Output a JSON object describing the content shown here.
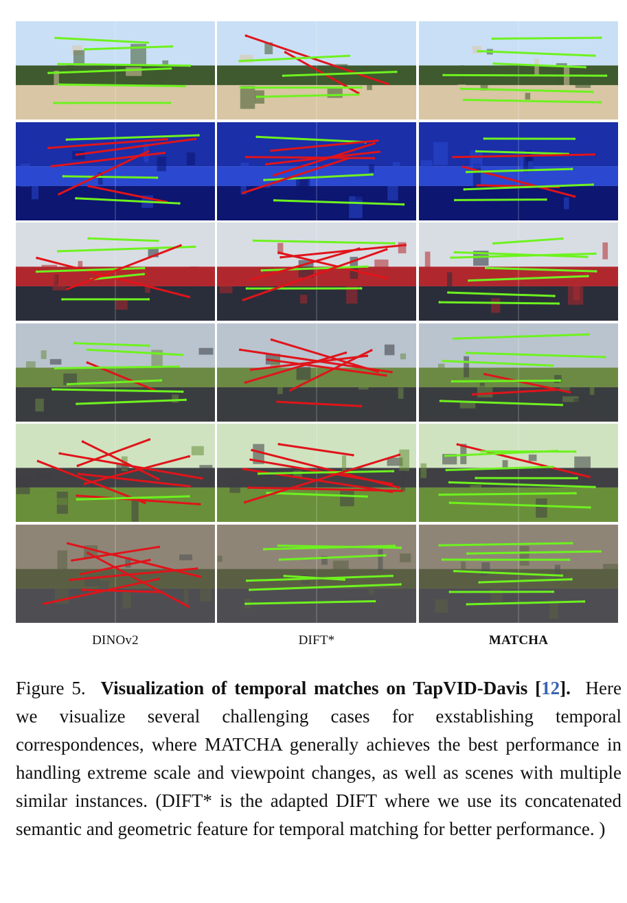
{
  "columns": [
    {
      "label": "DINOv2",
      "bold": false
    },
    {
      "label": "DIFT*",
      "bold": false
    },
    {
      "label": "MATCHA",
      "bold": true
    }
  ],
  "rows": [
    {
      "scene": "horse-show-jumping",
      "palette": [
        "#c9dff5",
        "#3e5a2e",
        "#d8c6a4"
      ],
      "matches": [
        [
          "green",
          "green",
          "green",
          "green",
          "green",
          "green"
        ],
        [
          "red",
          "red",
          "green",
          "green",
          "green",
          "green"
        ],
        [
          "green",
          "green",
          "green",
          "green",
          "green",
          "green"
        ]
      ]
    },
    {
      "scene": "goldfish-aquarium",
      "palette": [
        "#1a2fa8",
        "#2a48d0",
        "#0d1670"
      ],
      "matches": [
        [
          "green",
          "red",
          "red",
          "red",
          "green",
          "red",
          "red",
          "green"
        ],
        [
          "green",
          "red",
          "red",
          "red",
          "red",
          "green",
          "red",
          "green"
        ],
        [
          "green",
          "green",
          "red",
          "red",
          "green",
          "red",
          "green",
          "green"
        ]
      ]
    },
    {
      "scene": "electronics-store",
      "palette": [
        "#d8dde3",
        "#b0282e",
        "#2a2e3a"
      ],
      "matches": [
        [
          "green",
          "green",
          "red",
          "green",
          "green",
          "red",
          "green"
        ],
        [
          "green",
          "red",
          "red",
          "green",
          "red",
          "green",
          "red"
        ],
        [
          "green",
          "green",
          "green",
          "green",
          "green",
          "green",
          "green"
        ]
      ]
    },
    {
      "scene": "motorbike-burnout",
      "palette": [
        "#b9c4cf",
        "#6c8a44",
        "#3a3d40"
      ],
      "matches": [
        [
          "green",
          "green",
          "red",
          "green",
          "green",
          "green",
          "green"
        ],
        [
          "red",
          "red",
          "red",
          "red",
          "red",
          "red",
          "red"
        ],
        [
          "green",
          "green",
          "green",
          "red",
          "green",
          "red",
          "green"
        ]
      ]
    },
    {
      "scene": "motorbike-street",
      "palette": [
        "#cfe3c0",
        "#3f3f44",
        "#6a8f3a"
      ],
      "matches": [
        [
          "red",
          "red",
          "red",
          "red",
          "red",
          "red",
          "red",
          "green"
        ],
        [
          "red",
          "red",
          "red",
          "red",
          "green",
          "red",
          "green",
          "red"
        ],
        [
          "red",
          "green",
          "green",
          "green",
          "green",
          "green",
          "green",
          "green"
        ]
      ]
    },
    {
      "scene": "street-dancer",
      "palette": [
        "#8f8577",
        "#5a5f44",
        "#4e4e52"
      ],
      "matches": [
        [
          "red",
          "red",
          "red",
          "red",
          "red",
          "red",
          "red"
        ],
        [
          "green",
          "green",
          "green",
          "green",
          "green",
          "green",
          "green"
        ],
        [
          "green",
          "green",
          "green",
          "green",
          "green",
          "green",
          "green"
        ]
      ]
    }
  ],
  "colors": {
    "green": "#6ef21f",
    "red": "#e0141a",
    "ref": "#3a64b0"
  },
  "caption": {
    "label": "Figure 5.",
    "title": "Visualization of temporal matches on TapVID-Davis [",
    "ref": "12",
    "title_end": "].",
    "body": "Here we visualize several challenging cases for exstablishing temporal correspondences, where MATCHA generally achieves the best performance in handling extreme scale and viewpoint changes, as well as scenes with multiple similar instances. (DIFT* is the adapted DIFT where we use its concatenated semantic and geometric feature for temporal matching for better performance. )"
  }
}
